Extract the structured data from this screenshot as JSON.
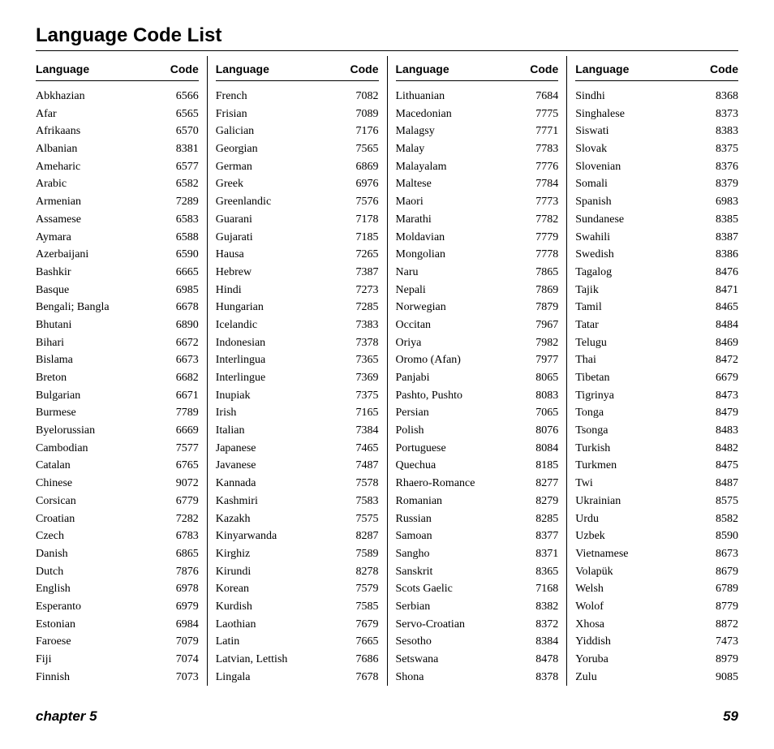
{
  "title": "Language Code List",
  "header_language": "Language",
  "header_code": "Code",
  "footer_chapter": "chapter 5",
  "footer_page": "59",
  "columns": [
    [
      {
        "lang": "Abkhazian",
        "code": "6566"
      },
      {
        "lang": "Afar",
        "code": "6565"
      },
      {
        "lang": "Afrikaans",
        "code": "6570"
      },
      {
        "lang": "Albanian",
        "code": "8381"
      },
      {
        "lang": "Ameharic",
        "code": "6577"
      },
      {
        "lang": "Arabic",
        "code": "6582"
      },
      {
        "lang": "Armenian",
        "code": "7289"
      },
      {
        "lang": "Assamese",
        "code": "6583"
      },
      {
        "lang": "Aymara",
        "code": "6588"
      },
      {
        "lang": "Azerbaijani",
        "code": "6590"
      },
      {
        "lang": "Bashkir",
        "code": "6665"
      },
      {
        "lang": "Basque",
        "code": "6985"
      },
      {
        "lang": "Bengali; Bangla",
        "code": "6678"
      },
      {
        "lang": "Bhutani",
        "code": "6890"
      },
      {
        "lang": "Bihari",
        "code": "6672"
      },
      {
        "lang": "Bislama",
        "code": "6673"
      },
      {
        "lang": "Breton",
        "code": "6682"
      },
      {
        "lang": "Bulgarian",
        "code": "6671"
      },
      {
        "lang": "Burmese",
        "code": "7789"
      },
      {
        "lang": "Byelorussian",
        "code": "6669"
      },
      {
        "lang": "Cambodian",
        "code": "7577"
      },
      {
        "lang": "Catalan",
        "code": "6765"
      },
      {
        "lang": "Chinese",
        "code": "9072"
      },
      {
        "lang": "Corsican",
        "code": "6779"
      },
      {
        "lang": "Croatian",
        "code": "7282"
      },
      {
        "lang": "Czech",
        "code": "6783"
      },
      {
        "lang": "Danish",
        "code": "6865"
      },
      {
        "lang": "Dutch",
        "code": "7876"
      },
      {
        "lang": "English",
        "code": "6978"
      },
      {
        "lang": "Esperanto",
        "code": "6979"
      },
      {
        "lang": "Estonian",
        "code": "6984"
      },
      {
        "lang": "Faroese",
        "code": "7079"
      },
      {
        "lang": "Fiji",
        "code": "7074"
      },
      {
        "lang": "Finnish",
        "code": "7073"
      }
    ],
    [
      {
        "lang": "French",
        "code": "7082"
      },
      {
        "lang": "Frisian",
        "code": "7089"
      },
      {
        "lang": "Galician",
        "code": "7176"
      },
      {
        "lang": "Georgian",
        "code": "7565"
      },
      {
        "lang": "German",
        "code": "6869"
      },
      {
        "lang": "Greek",
        "code": "6976"
      },
      {
        "lang": "Greenlandic",
        "code": "7576"
      },
      {
        "lang": "Guarani",
        "code": "7178"
      },
      {
        "lang": "Gujarati",
        "code": "7185"
      },
      {
        "lang": "Hausa",
        "code": "7265"
      },
      {
        "lang": "Hebrew",
        "code": "7387"
      },
      {
        "lang": "Hindi",
        "code": "7273"
      },
      {
        "lang": "Hungarian",
        "code": "7285"
      },
      {
        "lang": "Icelandic",
        "code": "7383"
      },
      {
        "lang": "Indonesian",
        "code": "7378"
      },
      {
        "lang": "Interlingua",
        "code": "7365"
      },
      {
        "lang": "Interlingue",
        "code": "7369"
      },
      {
        "lang": "Inupiak",
        "code": "7375"
      },
      {
        "lang": "Irish",
        "code": "7165"
      },
      {
        "lang": "Italian",
        "code": "7384"
      },
      {
        "lang": "Japanese",
        "code": "7465"
      },
      {
        "lang": "Javanese",
        "code": "7487"
      },
      {
        "lang": "Kannada",
        "code": "7578"
      },
      {
        "lang": "Kashmiri",
        "code": "7583"
      },
      {
        "lang": "Kazakh",
        "code": "7575"
      },
      {
        "lang": "Kinyarwanda",
        "code": "8287"
      },
      {
        "lang": "Kirghiz",
        "code": "7589"
      },
      {
        "lang": "Kirundi",
        "code": "8278"
      },
      {
        "lang": "Korean",
        "code": "7579"
      },
      {
        "lang": "Kurdish",
        "code": "7585"
      },
      {
        "lang": "Laothian",
        "code": "7679"
      },
      {
        "lang": "Latin",
        "code": "7665"
      },
      {
        "lang": "Latvian, Lettish",
        "code": "7686"
      },
      {
        "lang": "Lingala",
        "code": "7678"
      }
    ],
    [
      {
        "lang": "Lithuanian",
        "code": "7684"
      },
      {
        "lang": "Macedonian",
        "code": "7775"
      },
      {
        "lang": "Malagsy",
        "code": "7771"
      },
      {
        "lang": "Malay",
        "code": "7783"
      },
      {
        "lang": "Malayalam",
        "code": "7776"
      },
      {
        "lang": "Maltese",
        "code": "7784"
      },
      {
        "lang": "Maori",
        "code": "7773"
      },
      {
        "lang": "Marathi",
        "code": "7782"
      },
      {
        "lang": "Moldavian",
        "code": "7779"
      },
      {
        "lang": "Mongolian",
        "code": "7778"
      },
      {
        "lang": "Naru",
        "code": "7865"
      },
      {
        "lang": "Nepali",
        "code": "7869"
      },
      {
        "lang": "Norwegian",
        "code": "7879"
      },
      {
        "lang": "Occitan",
        "code": "7967"
      },
      {
        "lang": "Oriya",
        "code": "7982"
      },
      {
        "lang": "Oromo (Afan)",
        "code": "7977"
      },
      {
        "lang": "Panjabi",
        "code": "8065"
      },
      {
        "lang": "Pashto, Pushto",
        "code": "8083"
      },
      {
        "lang": "Persian",
        "code": "7065"
      },
      {
        "lang": "Polish",
        "code": "8076"
      },
      {
        "lang": "Portuguese",
        "code": "8084"
      },
      {
        "lang": "Quechua",
        "code": "8185"
      },
      {
        "lang": "Rhaero-Romance",
        "code": "8277"
      },
      {
        "lang": "Romanian",
        "code": "8279"
      },
      {
        "lang": "Russian",
        "code": "8285"
      },
      {
        "lang": "Samoan",
        "code": "8377"
      },
      {
        "lang": "Sangho",
        "code": "8371"
      },
      {
        "lang": "Sanskrit",
        "code": "8365"
      },
      {
        "lang": "Scots Gaelic",
        "code": "7168"
      },
      {
        "lang": "Serbian",
        "code": "8382"
      },
      {
        "lang": "Servo-Croatian",
        "code": "8372"
      },
      {
        "lang": "Sesotho",
        "code": "8384"
      },
      {
        "lang": "Setswana",
        "code": "8478"
      },
      {
        "lang": "Shona",
        "code": "8378"
      }
    ],
    [
      {
        "lang": "Sindhi",
        "code": "8368"
      },
      {
        "lang": "Singhalese",
        "code": "8373"
      },
      {
        "lang": "Siswati",
        "code": "8383"
      },
      {
        "lang": "Slovak",
        "code": "8375"
      },
      {
        "lang": "Slovenian",
        "code": "8376"
      },
      {
        "lang": "Somali",
        "code": "8379"
      },
      {
        "lang": "Spanish",
        "code": "6983"
      },
      {
        "lang": "Sundanese",
        "code": "8385"
      },
      {
        "lang": "Swahili",
        "code": "8387"
      },
      {
        "lang": "Swedish",
        "code": "8386"
      },
      {
        "lang": "Tagalog",
        "code": "8476"
      },
      {
        "lang": "Tajik",
        "code": "8471"
      },
      {
        "lang": "Tamil",
        "code": "8465"
      },
      {
        "lang": "Tatar",
        "code": "8484"
      },
      {
        "lang": "Telugu",
        "code": "8469"
      },
      {
        "lang": "Thai",
        "code": "8472"
      },
      {
        "lang": "Tibetan",
        "code": "6679"
      },
      {
        "lang": "Tigrinya",
        "code": "8473"
      },
      {
        "lang": "Tonga",
        "code": "8479"
      },
      {
        "lang": "Tsonga",
        "code": "8483"
      },
      {
        "lang": "Turkish",
        "code": "8482"
      },
      {
        "lang": "Turkmen",
        "code": "8475"
      },
      {
        "lang": "Twi",
        "code": "8487"
      },
      {
        "lang": "Ukrainian",
        "code": "8575"
      },
      {
        "lang": "Urdu",
        "code": "8582"
      },
      {
        "lang": "Uzbek",
        "code": "8590"
      },
      {
        "lang": "Vietnamese",
        "code": "8673"
      },
      {
        "lang": "Volapük",
        "code": "8679"
      },
      {
        "lang": "Welsh",
        "code": "6789"
      },
      {
        "lang": "Wolof",
        "code": "8779"
      },
      {
        "lang": "Xhosa",
        "code": "8872"
      },
      {
        "lang": "Yiddish",
        "code": "7473"
      },
      {
        "lang": "Yoruba",
        "code": "8979"
      },
      {
        "lang": "Zulu",
        "code": "9085"
      }
    ]
  ]
}
